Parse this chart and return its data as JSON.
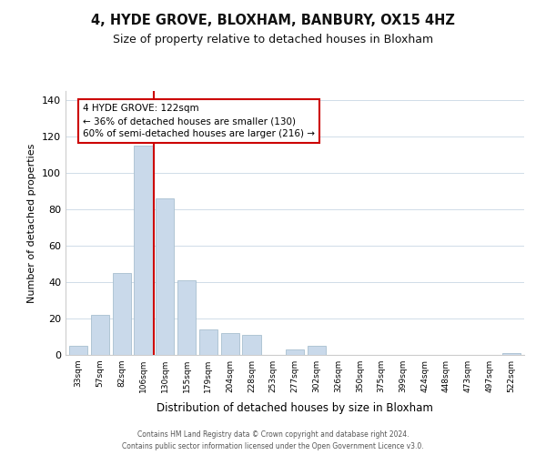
{
  "title": "4, HYDE GROVE, BLOXHAM, BANBURY, OX15 4HZ",
  "subtitle": "Size of property relative to detached houses in Bloxham",
  "xlabel": "Distribution of detached houses by size in Bloxham",
  "ylabel": "Number of detached properties",
  "bar_labels": [
    "33sqm",
    "57sqm",
    "82sqm",
    "106sqm",
    "130sqm",
    "155sqm",
    "179sqm",
    "204sqm",
    "228sqm",
    "253sqm",
    "277sqm",
    "302sqm",
    "326sqm",
    "350sqm",
    "375sqm",
    "399sqm",
    "424sqm",
    "448sqm",
    "473sqm",
    "497sqm",
    "522sqm"
  ],
  "bar_heights": [
    5,
    22,
    45,
    115,
    86,
    41,
    14,
    12,
    11,
    0,
    3,
    5,
    0,
    0,
    0,
    0,
    0,
    0,
    0,
    0,
    1
  ],
  "bar_color": "#c9d9ea",
  "bar_edge_color": "#a8bfcf",
  "vline_color": "#cc0000",
  "annotation_title": "4 HYDE GROVE: 122sqm",
  "annotation_line1": "← 36% of detached houses are smaller (130)",
  "annotation_line2": "60% of semi-detached houses are larger (216) →",
  "annotation_box_color": "#ffffff",
  "annotation_box_edge": "#cc0000",
  "ylim": [
    0,
    145
  ],
  "footer1": "Contains HM Land Registry data © Crown copyright and database right 2024.",
  "footer2": "Contains public sector information licensed under the Open Government Licence v3.0.",
  "title_fontsize": 10.5,
  "subtitle_fontsize": 9,
  "background_color": "#ffffff",
  "grid_color": "#d0dce8"
}
